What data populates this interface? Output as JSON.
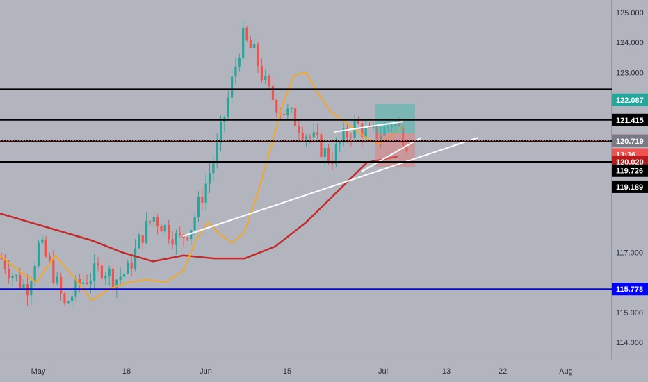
{
  "chart_data": {
    "type": "candlestick",
    "title": "",
    "xlabel": "",
    "ylabel": "",
    "ylim": [
      113.4,
      125.5
    ],
    "y_ticks": [
      "125.000",
      "124.000",
      "123.000",
      "117.000",
      "115.000",
      "114.000"
    ],
    "x_ticks": [
      "May",
      "18",
      "Jun",
      "15",
      "Jul",
      "13",
      "22",
      "Aug"
    ],
    "grid": false,
    "horizontal_levels": [
      {
        "value": 122.443,
        "label": "122.443",
        "color": "#000000"
      },
      {
        "value": 121.415,
        "label": "121.415",
        "color": "#000000"
      },
      {
        "value": 120.719,
        "label": "120.719",
        "color": "#000000"
      },
      {
        "value": 120.02,
        "label": "120.020",
        "color": "#000000"
      },
      {
        "value": 115.778,
        "label": "115.778",
        "color": "#0000ff"
      }
    ],
    "price_badges": [
      {
        "value": 122.087,
        "label": "122.087",
        "bg": "#26a69a",
        "fg": "#ffffff"
      },
      {
        "value": 121.415,
        "label": "121.415",
        "bg": "#000000",
        "fg": "#ffffff"
      },
      {
        "value": 120.726,
        "label": "120.726",
        "bg": "#ef5350",
        "fg": "#ffffff"
      },
      {
        "value": 120.726,
        "label": "13:36",
        "bg": "#ef5350",
        "fg": "#ffffff",
        "offset_row": 1
      },
      {
        "value": 120.719,
        "label": "120.719",
        "bg": "#787b86",
        "fg": "#ffffff"
      },
      {
        "value": 120.02,
        "label": "120.020",
        "bg": "#b71c1c",
        "fg": "#ffffff"
      },
      {
        "value": 119.726,
        "label": "119.726",
        "bg": "#000000",
        "fg": "#ffffff"
      },
      {
        "value": 119.189,
        "label": "119.189",
        "bg": "#000000",
        "fg": "#ffffff"
      },
      {
        "value": 115.778,
        "label": "115.778",
        "bg": "#0000ff",
        "fg": "#ffffff"
      }
    ],
    "current_price": 120.726,
    "series": [
      {
        "name": "",
        "kind": "moving-average-fast",
        "color": "#f39c12",
        "x": [
          0,
          0.03,
          0.06,
          0.09,
          0.12,
          0.15,
          0.18,
          0.21,
          0.24,
          0.27,
          0.3,
          0.32,
          0.34,
          0.36,
          0.38,
          0.4,
          0.42,
          0.44,
          0.46,
          0.48,
          0.5,
          0.52,
          0.54,
          0.56,
          0.58,
          0.6,
          0.62,
          0.64,
          0.66
        ],
        "y": [
          116.9,
          116.4,
          116.0,
          116.9,
          116.2,
          115.4,
          115.8,
          116.0,
          116.1,
          116.0,
          116.4,
          117.4,
          118.0,
          117.6,
          117.3,
          117.7,
          118.9,
          120.3,
          121.8,
          122.9,
          123.0,
          122.3,
          121.7,
          121.4,
          121.1,
          120.8,
          120.6,
          120.9,
          121.2
        ]
      },
      {
        "name": "",
        "kind": "moving-average-slow",
        "color": "#c0392b",
        "x": [
          0,
          0.05,
          0.1,
          0.15,
          0.2,
          0.25,
          0.3,
          0.35,
          0.4,
          0.45,
          0.5,
          0.55,
          0.6,
          0.65
        ],
        "y": [
          118.3,
          118.0,
          117.7,
          117.4,
          117.0,
          116.7,
          116.9,
          116.8,
          116.8,
          117.2,
          118.0,
          119.0,
          120.0,
          120.2
        ]
      }
    ],
    "candles_path": [
      116.8,
      116.2,
      115.8,
      117.3,
      116.4,
      115.2,
      115.9,
      116.2,
      116.5,
      116.1,
      116.4,
      117.5,
      118.2,
      117.8,
      117.4,
      117.9,
      119.1,
      120.4,
      122.3,
      124.2,
      123.6,
      122.4,
      121.8,
      121.5,
      121.0,
      120.6,
      120.1,
      120.8,
      121.3,
      120.9,
      121.0,
      121.4,
      120.7
    ]
  }
}
